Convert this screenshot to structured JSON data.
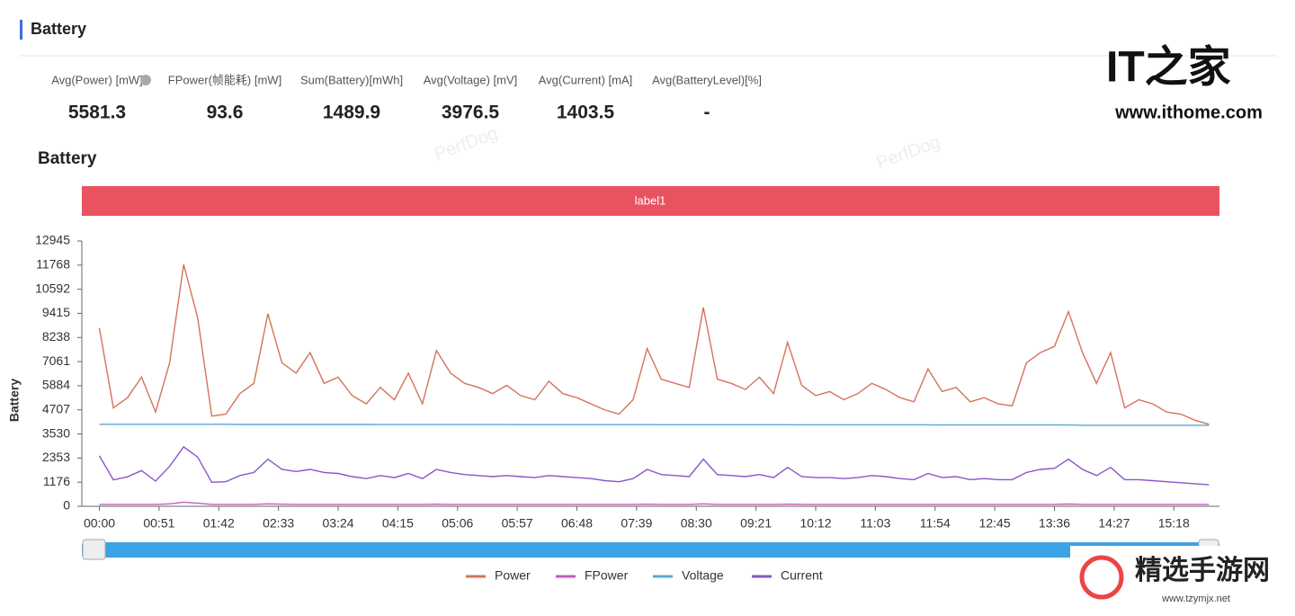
{
  "header": {
    "title": "Battery"
  },
  "stats": [
    {
      "label": "Avg(Power) [mW]",
      "value": 5581.3
    },
    {
      "label": "FPower(帧能耗) [mW]",
      "value": 93.6
    },
    {
      "label": "Sum(Battery)[mWh]",
      "value": 1489.9
    },
    {
      "label": "Avg(Voltage) [mV]",
      "value": 3976.5
    },
    {
      "label": "Avg(Current) [mA]",
      "value": 1403.5
    },
    {
      "label": "Avg(BatteryLevel)[%]",
      "value": "-"
    }
  ],
  "watermarks": {
    "ithome_logo": "IT之家",
    "ithome_url": "www.ithome.com",
    "site_logo": "精选手游网",
    "site_url": "www.tzymjx.net",
    "perfdog": "PerfDog"
  },
  "chart_data": {
    "type": "line",
    "title": "Battery",
    "band_label": "label1",
    "y_label": "Battery",
    "grid": false,
    "xlim": [
      -15,
      957
    ],
    "ylim": [
      0,
      12945
    ],
    "yticks": [
      0,
      1176,
      2353,
      3530,
      4707,
      5884,
      7061,
      8238,
      9415,
      10592,
      11768,
      12945
    ],
    "xticks": [
      {
        "value": 0,
        "label": "00:00"
      },
      {
        "value": 51,
        "label": "00:51"
      },
      {
        "value": 102,
        "label": "01:42"
      },
      {
        "value": 153,
        "label": "02:33"
      },
      {
        "value": 204,
        "label": "03:24"
      },
      {
        "value": 255,
        "label": "04:15"
      },
      {
        "value": 306,
        "label": "05:06"
      },
      {
        "value": 357,
        "label": "05:57"
      },
      {
        "value": 408,
        "label": "06:48"
      },
      {
        "value": 459,
        "label": "07:39"
      },
      {
        "value": 510,
        "label": "08:30"
      },
      {
        "value": 561,
        "label": "09:21"
      },
      {
        "value": 612,
        "label": "10:12"
      },
      {
        "value": 663,
        "label": "11:03"
      },
      {
        "value": 714,
        "label": "11:54"
      },
      {
        "value": 765,
        "label": "12:45"
      },
      {
        "value": 816,
        "label": "13:36"
      },
      {
        "value": 867,
        "label": "14:27"
      },
      {
        "value": 918,
        "label": "15:18"
      }
    ],
    "x": [
      0,
      12,
      24,
      36,
      48,
      60,
      72,
      84,
      96,
      108,
      120,
      132,
      144,
      156,
      168,
      180,
      192,
      204,
      216,
      228,
      240,
      252,
      264,
      276,
      288,
      300,
      312,
      324,
      336,
      348,
      360,
      372,
      384,
      396,
      408,
      420,
      432,
      444,
      456,
      468,
      480,
      492,
      504,
      516,
      528,
      540,
      552,
      564,
      576,
      588,
      600,
      612,
      624,
      636,
      648,
      660,
      672,
      684,
      696,
      708,
      720,
      732,
      744,
      756,
      768,
      780,
      792,
      804,
      816,
      828,
      840,
      852,
      864,
      876,
      888,
      900,
      912,
      924,
      936,
      948
    ],
    "series": [
      {
        "name": "Power",
        "color": "#d4735a",
        "values": [
          8700,
          4800,
          5300,
          6300,
          4600,
          7000,
          11800,
          9200,
          4400,
          4500,
          5500,
          6000,
          9400,
          7000,
          6500,
          7500,
          6000,
          6300,
          5400,
          5000,
          5800,
          5200,
          6500,
          5000,
          7600,
          6500,
          6000,
          5800,
          5500,
          5900,
          5400,
          5200,
          6100,
          5500,
          5300,
          5000,
          4700,
          4500,
          5200,
          7700,
          6200,
          6000,
          5800,
          9700,
          6200,
          6000,
          5700,
          6300,
          5500,
          8000,
          5900,
          5400,
          5600,
          5200,
          5500,
          6000,
          5700,
          5300,
          5100,
          6700,
          5600,
          5800,
          5100,
          5300,
          5000,
          4900,
          7000,
          7500,
          7800,
          9500,
          7500,
          6000,
          7500,
          4800,
          5200,
          5000,
          4600,
          4500,
          4200,
          4000
        ]
      },
      {
        "name": "FPower",
        "color": "#c35cc2",
        "values": [
          90,
          90,
          90,
          90,
          90,
          120,
          200,
          150,
          90,
          90,
          90,
          90,
          120,
          100,
          90,
          90,
          90,
          90,
          90,
          90,
          90,
          90,
          90,
          90,
          100,
          90,
          90,
          90,
          90,
          90,
          90,
          90,
          90,
          90,
          90,
          90,
          90,
          90,
          90,
          100,
          90,
          90,
          90,
          120,
          90,
          90,
          90,
          90,
          90,
          100,
          90,
          90,
          90,
          90,
          90,
          90,
          90,
          90,
          90,
          90,
          90,
          90,
          90,
          90,
          90,
          90,
          90,
          90,
          90,
          110,
          90,
          90,
          90,
          90,
          90,
          90,
          90,
          90,
          90,
          90
        ]
      },
      {
        "name": "Voltage",
        "color": "#5aa7dc",
        "values": [
          4000,
          4000,
          4000,
          4000,
          4000,
          4000,
          4000,
          4000,
          4000,
          4000,
          3995,
          3995,
          3995,
          3995,
          3995,
          3995,
          3995,
          3995,
          3995,
          3995,
          3990,
          3990,
          3990,
          3990,
          3990,
          3990,
          3990,
          3990,
          3990,
          3990,
          3985,
          3985,
          3985,
          3985,
          3985,
          3985,
          3985,
          3985,
          3985,
          3985,
          3980,
          3980,
          3980,
          3980,
          3980,
          3980,
          3980,
          3980,
          3980,
          3980,
          3975,
          3975,
          3975,
          3975,
          3975,
          3975,
          3975,
          3975,
          3975,
          3975,
          3965,
          3965,
          3965,
          3965,
          3965,
          3965,
          3965,
          3965,
          3965,
          3965,
          3955,
          3955,
          3955,
          3955,
          3955,
          3955,
          3955,
          3955,
          3955,
          3955
        ]
      },
      {
        "name": "Current",
        "color": "#8a55c9",
        "values": [
          2460,
          1290,
          1440,
          1740,
          1230,
          1950,
          2900,
          2400,
          1170,
          1200,
          1500,
          1650,
          2300,
          1800,
          1700,
          1800,
          1650,
          1600,
          1450,
          1350,
          1500,
          1400,
          1600,
          1350,
          1800,
          1650,
          1550,
          1500,
          1450,
          1500,
          1450,
          1400,
          1500,
          1450,
          1400,
          1350,
          1250,
          1200,
          1350,
          1800,
          1550,
          1500,
          1450,
          2300,
          1550,
          1500,
          1450,
          1550,
          1400,
          1900,
          1450,
          1400,
          1400,
          1350,
          1400,
          1500,
          1450,
          1350,
          1300,
          1600,
          1400,
          1450,
          1300,
          1350,
          1300,
          1300,
          1650,
          1800,
          1850,
          2300,
          1800,
          1500,
          1900,
          1300,
          1300,
          1250,
          1200,
          1150,
          1100,
          1050
        ]
      }
    ]
  }
}
